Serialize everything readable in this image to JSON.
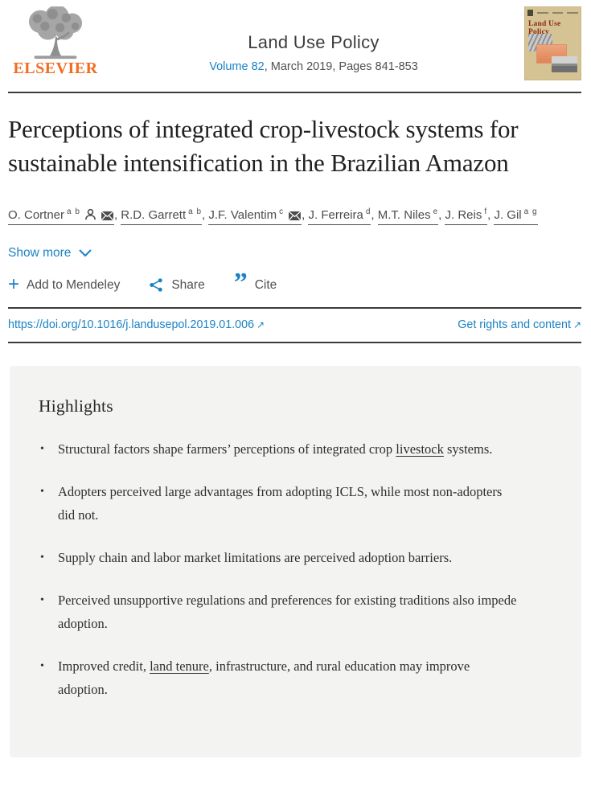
{
  "header": {
    "publisher": "ELSEVIER",
    "journal_title": "Land Use Policy",
    "volume_link": "Volume 82",
    "issue_rest": ", March 2019, Pages 841-853",
    "cover_title": "Land Use Policy"
  },
  "article": {
    "title": "Perceptions of integrated crop-livestock systems for sustainable intensification in the Brazilian Amazon",
    "show_more_label": "Show more"
  },
  "authors": [
    {
      "name": "O. Cortner",
      "sup": "a b",
      "icons": [
        "person",
        "envelope"
      ]
    },
    {
      "name": "R.D. Garrett",
      "sup": "a b",
      "icons": []
    },
    {
      "name": "J.F. Valentim",
      "sup": "c",
      "icons": [
        "envelope"
      ]
    },
    {
      "name": "J. Ferreira",
      "sup": "d",
      "icons": []
    },
    {
      "name": "M.T. Niles",
      "sup": "e",
      "icons": []
    },
    {
      "name": "J. Reis",
      "sup": "f",
      "icons": []
    },
    {
      "name": "J. Gil",
      "sup": "a g",
      "icons": []
    }
  ],
  "actions": {
    "mendeley": "Add to Mendeley",
    "share": "Share",
    "cite": "Cite"
  },
  "links": {
    "doi": "https://doi.org/10.1016/j.landusepol.2019.01.006",
    "rights": "Get rights and content",
    "external_arrow": "↗"
  },
  "highlights": {
    "heading": "Highlights",
    "items": [
      {
        "segments": [
          {
            "text": "Structural factors shape farmers’ perceptions of integrated crop "
          },
          {
            "text": "livestock",
            "link": true
          },
          {
            "text": " systems."
          }
        ]
      },
      {
        "segments": [
          {
            "text": "Adopters perceived large advantages from adopting ICLS, while most non-adopters did not."
          }
        ]
      },
      {
        "segments": [
          {
            "text": "Supply chain and labor market limitations are perceived adoption barriers."
          }
        ]
      },
      {
        "segments": [
          {
            "text": "Perceived unsupportive regulations and preferences for existing traditions also impede adoption."
          }
        ]
      },
      {
        "segments": [
          {
            "text": "Improved credit, "
          },
          {
            "text": "land tenure",
            "link": true
          },
          {
            "text": ", infrastructure, and rural education may improve adoption."
          }
        ]
      }
    ]
  },
  "colors": {
    "link_blue": "#1a82c4",
    "elsevier_orange": "#f26c21",
    "panel_bg": "#f3f3f2",
    "cover_bg": "#d6c393",
    "cover_title": "#8a2a1c",
    "rule_dark": "#3b3b3b"
  }
}
